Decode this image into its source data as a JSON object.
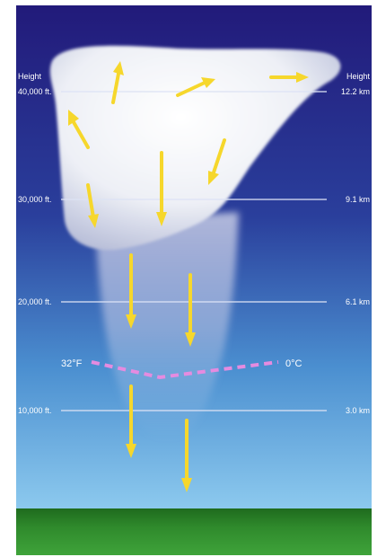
{
  "axis": {
    "left_title": "Height",
    "right_title": "Height",
    "levels": [
      {
        "ft": "40,000 ft.",
        "km": "12.2 km"
      },
      {
        "ft": "30,000 ft.",
        "km": "9.1 km"
      },
      {
        "ft": "20,000 ft.",
        "km": "6.1 km"
      },
      {
        "ft": "10,000 ft.",
        "km": "3.0 km"
      }
    ]
  },
  "freezing_level": {
    "left_label": "32°F",
    "right_label": "0°C",
    "line_color": "#e58be0"
  },
  "colors": {
    "sky_top": "#221a7a",
    "sky_mid": "#2a3f9c",
    "sky_low": "#4b8fd0",
    "sky_horizon": "#8cc9ee",
    "ground": "#2f8a2c",
    "arrow": "#f6d72c"
  },
  "icons": [
    "up-arrow-icon",
    "down-arrow-icon",
    "right-arrow-icon"
  ]
}
